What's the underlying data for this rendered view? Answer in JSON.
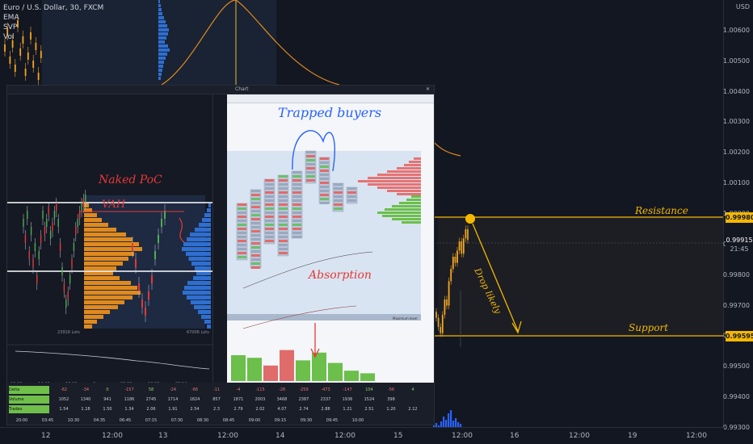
{
  "legend": {
    "symbol": "Euro / U.S. Dollar, 30, FXCM",
    "ind1": "EMA",
    "ind2": "SVP",
    "ind3": "Vol"
  },
  "colors": {
    "background": "#131722",
    "candle_up": "#f5a623",
    "candle_down": "#d9a02c",
    "level_line": "#f5b800",
    "volume_up": "#2962ff",
    "svp": "#2e6fd1",
    "ema": "#e08a1e",
    "resistance_tag": "#f5b800",
    "price_tag": "#ffffff"
  },
  "annotations": {
    "resistance": "Resistance",
    "support": "Support",
    "drop": "Drop likely",
    "trapped": "Trapped buyers",
    "naked_poc": "Naked PoC",
    "vah": "VAH",
    "absorption": "Absorption"
  },
  "price_tags": {
    "resistance": "0.99980",
    "current": "0.99915",
    "countdown": "21:45",
    "support": "0.99595"
  },
  "inset": {
    "toolbar_title": "Chart",
    "left_pane_footer": "23916 Lots",
    "left_pane_footer2": "67006 Lots",
    "right_label": "Maximum level",
    "stats_labels": [
      "Delta",
      "Volume",
      "Trades"
    ],
    "stats_values": [
      [
        "-62",
        "-34",
        "0",
        "-157",
        "58",
        "-24",
        "-66",
        "-11",
        "-4",
        "-115",
        "-28",
        "-259",
        "-473",
        "-147",
        "104",
        "-56",
        "4"
      ],
      [
        "1052",
        "1340",
        "941",
        "1186",
        "2745",
        "1714",
        "1824",
        "857",
        "1871",
        "2003",
        "3468",
        "2387",
        "2337",
        "1936",
        "1524",
        "398",
        ""
      ],
      [
        "1.54",
        "1.18",
        "1.50",
        "1.34",
        "2.06",
        "1.91",
        "2.54",
        "2.3",
        "2.79",
        "2.02",
        "4.07",
        "2.74",
        "2.88",
        "1.21",
        "2.51",
        "1.20",
        "2.12"
      ]
    ],
    "time_labels_left": [
      "13:00",
      "14:40",
      "17:00",
      "0",
      "00:00",
      "10:00",
      "08:14"
    ],
    "time_labels_bottom": [
      "20:00",
      "03:45",
      "10:30",
      "04:35",
      "06:45",
      "07:15",
      "07:30",
      "08:30",
      "08:45",
      "09:00",
      "09:15",
      "09:30",
      "09:45",
      "10:00"
    ]
  },
  "chart_data": {
    "type": "line",
    "title": "Euro / U.S. Dollar, 30, FXCM",
    "ylim": [
      0.993,
      1.007
    ],
    "price_ticks": [
      "USD",
      "1.00600",
      "1.00500",
      "1.00400",
      "1.00300",
      "1.00200",
      "1.00100",
      "1.00000",
      "0.99900",
      "0.99800",
      "0.99700",
      "0.99600",
      "0.99500",
      "0.99400",
      "0.99300"
    ],
    "time_ticks": [
      "12",
      "12:00",
      "13",
      "12:00",
      "14",
      "12:00",
      "15",
      "12:00",
      "16",
      "12:00",
      "19",
      "12:00"
    ],
    "resistance_level": 0.9998,
    "support_level": 0.99595,
    "last_price": 0.99915,
    "recent_closes": [
      0.9966,
      0.9963,
      0.9961,
      0.9967,
      0.9972,
      0.997,
      0.9978,
      0.9982,
      0.9986,
      0.9984,
      0.9988,
      0.9991,
      0.9987,
      0.9992,
      0.9995,
      0.99915
    ]
  }
}
